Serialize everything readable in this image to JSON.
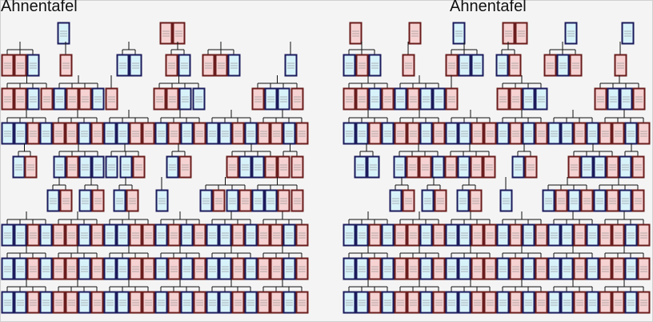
{
  "trees": [
    {
      "title": "Ahnentafel"
    },
    {
      "title": "Ahnentafel"
    }
  ],
  "colors": {
    "male_fill": "#d8f2fa",
    "male_border": "#1b1b5c",
    "female_fill": "#f6d2d2",
    "female_border": "#6a1c1c",
    "line": "#111111",
    "background": "#f4f4f4"
  }
}
